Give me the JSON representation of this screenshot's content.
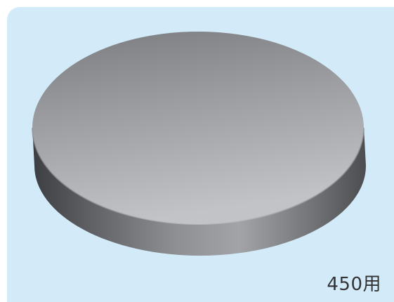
{
  "product": {
    "caption": "450用"
  },
  "colors": {
    "panel_background": "#d3ebf9",
    "disc_top_light": "#b8b9bd",
    "disc_top_dark": "#7d7f82",
    "disc_side_dark": "#3f4043",
    "disc_side_light": "#909296",
    "caption_text": "#333333"
  }
}
